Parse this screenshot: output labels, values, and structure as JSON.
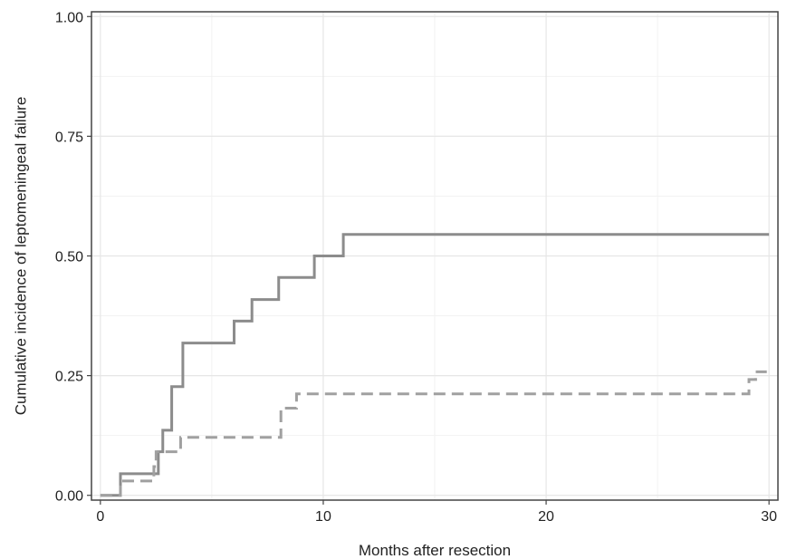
{
  "chart_data": {
    "type": "line",
    "step": true,
    "xlabel": "Months after resection",
    "ylabel": "Cumulative incidence of leptomeningeal failure",
    "xlim": [
      0,
      30
    ],
    "ylim": [
      0,
      1
    ],
    "xticks": [
      0,
      10,
      20,
      30
    ],
    "xtick_labels": [
      "0",
      "10",
      "20",
      "30"
    ],
    "yticks": [
      0,
      0.25,
      0.5,
      0.75,
      1.0
    ],
    "ytick_labels": [
      "0.00",
      "0.25",
      "0.50",
      "0.75",
      "1.00"
    ],
    "grid": true,
    "series": [
      {
        "style": "solid",
        "color": "#8c8c8c",
        "x": [
          0,
          0.9,
          2.6,
          2.8,
          3.2,
          3.7,
          6.0,
          6.8,
          8.0,
          9.6,
          10.9,
          30
        ],
        "y": [
          0,
          0.045,
          0.091,
          0.136,
          0.227,
          0.318,
          0.364,
          0.409,
          0.455,
          0.5,
          0.545,
          0.545
        ]
      },
      {
        "style": "dashed",
        "color": "#a0a0a0",
        "x": [
          0,
          0.9,
          2.4,
          2.5,
          3.6,
          8.1,
          8.8,
          29.1,
          29.4,
          29.9
        ],
        "y": [
          0,
          0.03,
          0.06,
          0.091,
          0.121,
          0.182,
          0.212,
          0.242,
          0.258,
          0.258
        ]
      }
    ]
  }
}
